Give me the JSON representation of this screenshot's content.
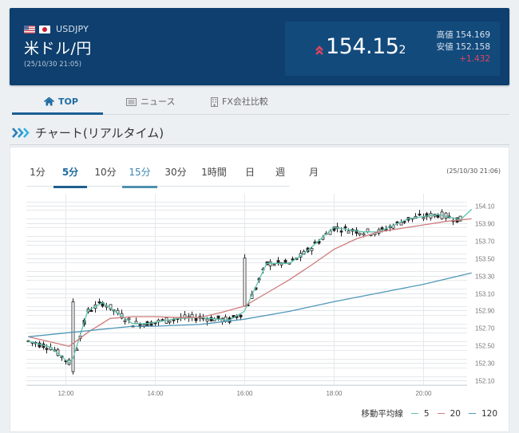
{
  "header": {
    "flags": [
      "us-flag-icon",
      "jp-flag-icon"
    ],
    "pair_code": "USDJPY",
    "pair_name": "米ドル/円",
    "timestamp": "(25/10/30 21:05)",
    "price": {
      "direction_icon": "double-chevron-up-icon",
      "main": "154.15",
      "sub_digit": "2",
      "high_label": "高値",
      "high_value": "154.169",
      "low_label": "安値",
      "low_value": "152.158",
      "change": "+1.432",
      "change_color": "#e0445c"
    }
  },
  "tabs": [
    {
      "label": "TOP",
      "icon": "home-icon",
      "active": true
    },
    {
      "label": "ニュース",
      "icon": "newspaper-icon",
      "active": false
    },
    {
      "label": "FX会社比較",
      "icon": "building-icon",
      "active": false
    }
  ],
  "section": {
    "icon": "triple-chevron-right-icon",
    "title": "チャート(リアルタイム)"
  },
  "chart": {
    "timeframes": [
      "1分",
      "5分",
      "10分",
      "15分",
      "30分",
      "1時間",
      "日",
      "週",
      "月"
    ],
    "selected_timeframe": "5分",
    "highlighted_timeframe": "15分",
    "timestamp": "(25/10/30 21:06)",
    "legend": {
      "label": "移動平均線",
      "items": [
        {
          "label": "5",
          "color": "#5fc4b0"
        },
        {
          "label": "20",
          "color": "#cf7c7c"
        },
        {
          "label": "120",
          "color": "#4f98b8"
        }
      ]
    }
  },
  "chart_data": {
    "type": "candlestick",
    "title": "USDJPY 5分足",
    "xlabel": "",
    "ylabel": "",
    "x_ticks": [
      "12:00",
      "14:00",
      "16:00",
      "18:00",
      "20:00"
    ],
    "y_ticks": [
      "154.10",
      "153.90",
      "153.70",
      "153.50",
      "153.30",
      "153.10",
      "152.90",
      "152.70",
      "152.50",
      "152.30",
      "152.10"
    ],
    "ylim": [
      152.05,
      154.2
    ],
    "grid": true,
    "legend_position": "bottom-right",
    "series": [
      {
        "name": "MA5",
        "color": "#5fc4b0",
        "x": [
          "11:10",
          "11:40",
          "12:05",
          "12:10",
          "12:30",
          "12:50",
          "13:30",
          "13:50",
          "14:30",
          "15:00",
          "15:40",
          "16:00",
          "16:30",
          "17:00",
          "17:20",
          "17:40",
          "18:00",
          "18:40",
          "19:00",
          "19:40",
          "20:20",
          "20:50",
          "21:05"
        ],
        "values": [
          152.55,
          152.48,
          152.3,
          152.35,
          152.9,
          152.99,
          152.75,
          152.75,
          152.81,
          152.82,
          152.79,
          152.89,
          153.44,
          153.44,
          153.55,
          153.7,
          153.85,
          153.8,
          153.8,
          153.95,
          154.0,
          153.94,
          154.06
        ]
      },
      {
        "name": "MA20",
        "color": "#cf7c7c",
        "x": [
          "11:10",
          "12:05",
          "12:30",
          "13:00",
          "13:30",
          "14:00",
          "14:30",
          "15:00",
          "15:30",
          "16:00",
          "16:30",
          "17:00",
          "17:30",
          "18:00",
          "18:30",
          "19:00",
          "19:30",
          "20:00",
          "20:30",
          "21:05"
        ],
        "values": [
          152.6,
          152.49,
          152.65,
          152.81,
          152.83,
          152.83,
          152.82,
          152.82,
          152.88,
          152.95,
          153.1,
          153.25,
          153.42,
          153.6,
          153.72,
          153.8,
          153.84,
          153.88,
          153.92,
          153.95
        ]
      },
      {
        "name": "MA120",
        "color": "#4f98b8",
        "x": [
          "11:10",
          "13:30",
          "14:00",
          "15:00",
          "16:00",
          "17:00",
          "18:00",
          "19:00",
          "20:00",
          "21:05"
        ],
        "values": [
          152.6,
          152.72,
          152.72,
          152.74,
          152.8,
          152.89,
          153.0,
          153.1,
          153.2,
          153.33
        ]
      }
    ],
    "ohlc_summary": {
      "open_approx": 152.5,
      "low": 152.158,
      "high": 154.169,
      "last": 154.152,
      "notable": [
        {
          "time": "12:10",
          "event": "sharp spike from ~152.20 to ~153.00"
        },
        {
          "time": "16:00",
          "event": "jump to ~153.50"
        },
        {
          "time": "17:40",
          "event": "peak ~153.85"
        },
        {
          "time": "20:45",
          "event": "rally to ~154.15"
        }
      ]
    }
  }
}
